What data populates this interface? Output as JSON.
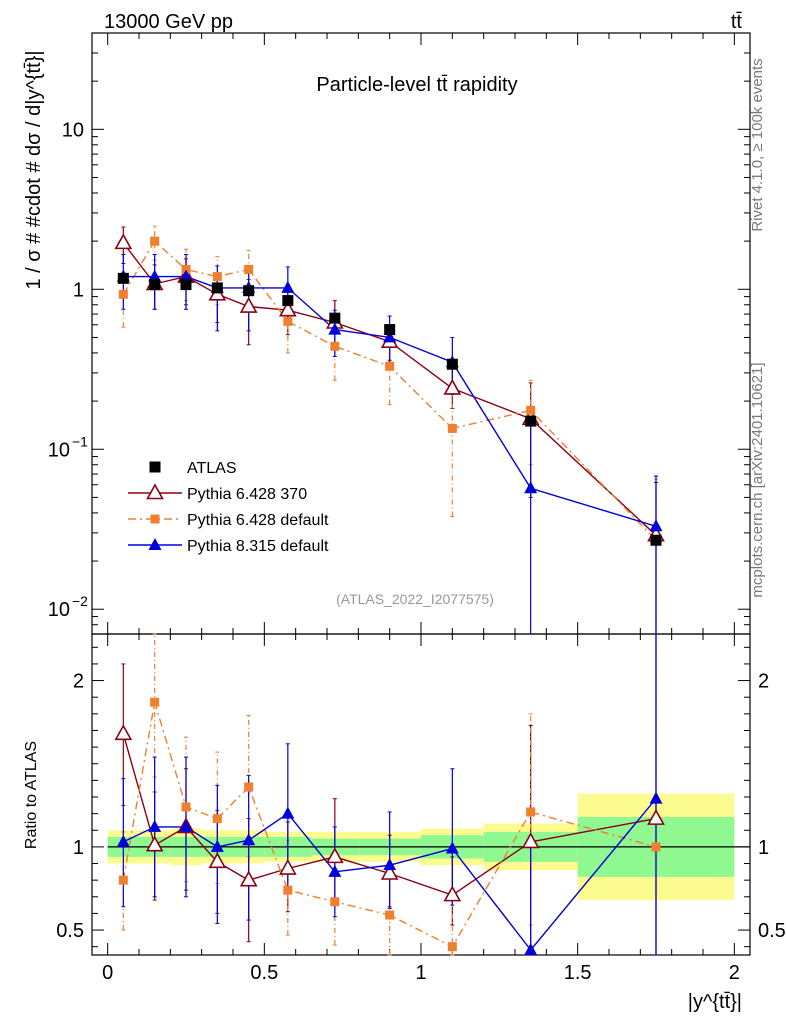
{
  "header": {
    "energy_label": "13000 GeV pp",
    "process_label": "tt̄",
    "rivet_label": "Rivet 4.1.0, ≥ 100k events",
    "mcplots_label": "mcplots.cern.ch [arXiv:2401.10621]"
  },
  "colors": {
    "atlas": "#000000",
    "py6_370": "#8b0015",
    "py6_default": "#f07f2e",
    "py8": "#0000dd",
    "band_inner": "#90f890",
    "band_outer": "#fbfb90"
  },
  "chart_data": [
    {
      "type": "scatter",
      "title": "Particle-level tt̄ rapidity",
      "analysis_tag": "(ATLAS_2022_I2077575)",
      "ylabel": "1 / σ # #cdot # dσ / d|y^{tt̄}|",
      "yscale": "log",
      "ylim": [
        0.007,
        40
      ],
      "y_ticks": [
        {
          "value": 0.01,
          "label": "10",
          "exp": "−2"
        },
        {
          "value": 0.1,
          "label": "10",
          "exp": "−1"
        },
        {
          "value": 1,
          "label": "1",
          "exp": ""
        },
        {
          "value": 10,
          "label": "10",
          "exp": ""
        }
      ],
      "x": [
        0.05,
        0.15,
        0.25,
        0.35,
        0.45,
        0.575,
        0.725,
        0.9,
        1.1,
        1.35,
        1.75
      ],
      "legend": [
        {
          "key": "atlas",
          "label": "ATLAS"
        },
        {
          "key": "py6_370",
          "label": "Pythia 6.428 370"
        },
        {
          "key": "py6_default",
          "label": "Pythia 6.428 default"
        },
        {
          "key": "py8",
          "label": "Pythia 8.315 default"
        }
      ],
      "series": [
        {
          "key": "atlas",
          "name": "ATLAS",
          "values": [
            1.17,
            1.07,
            1.07,
            1.02,
            0.98,
            0.85,
            0.66,
            0.56,
            0.34,
            0.15,
            0.027
          ]
        },
        {
          "key": "py6_370",
          "name": "Pythia 6.428 370",
          "values": [
            1.95,
            1.08,
            1.2,
            0.93,
            0.78,
            0.74,
            0.62,
            0.47,
            0.24,
            0.155,
            0.029
          ],
          "err_lo": [
            1.45,
            0.75,
            0.8,
            0.62,
            0.45,
            0.52,
            0.44,
            0.36,
            0.18,
            0.05,
            0.001
          ],
          "err_hi": [
            2.45,
            1.42,
            1.55,
            1.25,
            1.15,
            0.98,
            0.85,
            0.6,
            0.32,
            0.26,
            0.062
          ]
        },
        {
          "key": "py6_default",
          "name": "Pythia 6.428 default",
          "values": [
            0.93,
            2.0,
            1.33,
            1.2,
            1.33,
            0.63,
            0.44,
            0.33,
            0.135,
            0.175,
            0.027
          ],
          "err_lo": [
            0.58,
            1.52,
            0.85,
            0.8,
            0.92,
            0.4,
            0.27,
            0.19,
            0.038,
            0.08,
            0.001
          ],
          "err_hi": [
            1.28,
            2.48,
            1.78,
            1.6,
            1.75,
            0.88,
            0.62,
            0.48,
            0.24,
            0.27,
            0.065
          ]
        },
        {
          "key": "py8",
          "name": "Pythia 8.315 default",
          "values": [
            1.2,
            1.2,
            1.2,
            1.02,
            1.02,
            1.02,
            0.56,
            0.5,
            0.35,
            0.057,
            0.033
          ],
          "err_lo": [
            0.75,
            0.75,
            0.75,
            0.55,
            0.55,
            0.65,
            0.38,
            0.35,
            0.22,
            0.001,
            0.001
          ],
          "err_hi": [
            1.65,
            1.65,
            1.65,
            1.4,
            1.4,
            1.38,
            0.74,
            0.68,
            0.5,
            0.155,
            0.068
          ]
        }
      ]
    },
    {
      "type": "line",
      "ylabel": "Ratio to ATLAS",
      "xlabel": "|y^{tt̄}|",
      "ylim": [
        0.35,
        2.28
      ],
      "xlim": [
        -0.05,
        2.05
      ],
      "x_ticks": [
        0,
        0.5,
        1,
        1.5,
        2
      ],
      "x_tick_labels": [
        "0",
        "0.5",
        "1",
        "1.5",
        "2"
      ],
      "y_ticks": [
        0.5,
        1,
        2
      ],
      "y_tick_labels": [
        "0.5",
        "1",
        "2"
      ],
      "bins": [
        {
          "x0": 0.0,
          "x1": 0.1,
          "inner": 0.06,
          "outer": 0.1
        },
        {
          "x0": 0.1,
          "x1": 0.2,
          "inner": 0.06,
          "outer": 0.1
        },
        {
          "x0": 0.2,
          "x1": 0.3,
          "inner": 0.06,
          "outer": 0.11
        },
        {
          "x0": 0.3,
          "x1": 0.4,
          "inner": 0.06,
          "outer": 0.1
        },
        {
          "x0": 0.4,
          "x1": 0.5,
          "inner": 0.06,
          "outer": 0.1
        },
        {
          "x0": 0.5,
          "x1": 0.65,
          "inner": 0.06,
          "outer": 0.09
        },
        {
          "x0": 0.65,
          "x1": 0.8,
          "inner": 0.05,
          "outer": 0.09
        },
        {
          "x0": 0.8,
          "x1": 1.0,
          "inner": 0.05,
          "outer": 0.09
        },
        {
          "x0": 1.0,
          "x1": 1.2,
          "inner": 0.07,
          "outer": 0.11
        },
        {
          "x0": 1.2,
          "x1": 1.5,
          "inner": 0.09,
          "outer": 0.14
        },
        {
          "x0": 1.5,
          "x1": 2.0,
          "inner": 0.18,
          "outer": 0.32
        }
      ],
      "series": [
        {
          "key": "py6_370",
          "values": [
            1.68,
            1.01,
            1.12,
            0.91,
            0.8,
            0.87,
            0.94,
            0.84,
            0.71,
            1.03,
            1.17
          ],
          "err_lo": [
            1.25,
            0.68,
            0.74,
            0.6,
            0.43,
            0.61,
            0.67,
            0.64,
            0.53,
            0.34,
            0.03
          ],
          "err_hi": [
            2.1,
            1.33,
            1.47,
            1.22,
            1.17,
            1.15,
            1.29,
            1.07,
            0.94,
            1.73,
            2.3
          ]
        },
        {
          "key": "py6_default",
          "values": [
            0.8,
            1.87,
            1.24,
            1.17,
            1.36,
            0.74,
            0.67,
            0.59,
            0.4,
            1.21,
            1.0
          ],
          "err_lo": [
            0.5,
            1.42,
            0.79,
            0.78,
            0.94,
            0.47,
            0.41,
            0.34,
            0.11,
            0.53,
            0.04
          ],
          "err_hi": [
            1.09,
            2.32,
            1.66,
            1.57,
            1.79,
            1.04,
            0.94,
            0.86,
            0.71,
            1.8,
            2.4
          ]
        },
        {
          "key": "py8",
          "values": [
            1.03,
            1.12,
            1.12,
            1.0,
            1.04,
            1.2,
            0.85,
            0.89,
            0.99,
            0.38,
            1.29
          ],
          "err_lo": [
            0.64,
            0.7,
            0.7,
            0.54,
            0.56,
            0.76,
            0.58,
            0.63,
            0.65,
            0.0,
            0.04
          ],
          "err_hi": [
            1.41,
            1.54,
            1.54,
            1.37,
            1.43,
            1.62,
            1.12,
            1.21,
            1.47,
            1.03,
            2.5
          ]
        }
      ]
    }
  ]
}
